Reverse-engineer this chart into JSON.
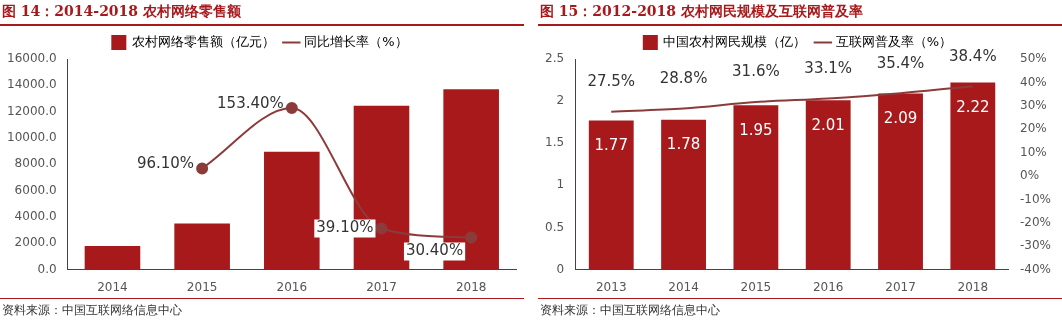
{
  "chart_data": [
    {
      "type": "bar",
      "title": "图 14：2014-2018 农村网络零售额",
      "categories": [
        "2014",
        "2015",
        "2016",
        "2017",
        "2018"
      ],
      "series": [
        {
          "name": "农村网络零售额（亿元）",
          "type": "bar",
          "color": "#a8191c",
          "values": [
            1800,
            3500,
            8950,
            12450,
            13700
          ]
        },
        {
          "name": "同比增长率（%）",
          "type": "line",
          "axis": "y2",
          "color": "#8c3b3b",
          "marker": "circle",
          "values": [
            null,
            96.1,
            153.4,
            39.1,
            30.4
          ],
          "value_labels": [
            null,
            "96.10%",
            "153.40%",
            "39.10%",
            "30.40%"
          ]
        }
      ],
      "ylim": [
        0,
        16000
      ],
      "yticks": [
        {
          "value": 0,
          "label": "0.0"
        },
        {
          "value": 2000,
          "label": "2000.0"
        },
        {
          "value": 4000,
          "label": "4000.0"
        },
        {
          "value": 6000,
          "label": "6000.0"
        },
        {
          "value": 8000,
          "label": "8000.0"
        },
        {
          "value": 10000,
          "label": "10000.0"
        },
        {
          "value": 12000,
          "label": "12000.0"
        },
        {
          "value": 14000,
          "label": "14000.0"
        },
        {
          "value": 16000,
          "label": "16000.0"
        }
      ],
      "grid": false,
      "legend": "top",
      "annotations": [
        "资料来源：中国互联网络信息中心"
      ]
    },
    {
      "type": "bar",
      "title": "图 15：2012-2018 农村网民规模及互联网普及率",
      "categories": [
        "2013",
        "2014",
        "2015",
        "2016",
        "2017",
        "2018"
      ],
      "series": [
        {
          "name": "中国农村网民规模（亿）",
          "type": "bar",
          "color": "#a8191c",
          "values": [
            1.77,
            1.78,
            1.95,
            2.01,
            2.09,
            2.22
          ],
          "value_labels": [
            "1.77",
            "1.78",
            "1.95",
            "2.01",
            "2.09",
            "2.22"
          ]
        },
        {
          "name": "互联网普及率（%）",
          "type": "line",
          "axis": "y2",
          "color": "#8c3b3b",
          "marker": "none",
          "values": [
            27.5,
            28.8,
            31.6,
            33.1,
            35.4,
            38.4
          ],
          "value_labels": [
            "27.5%",
            "28.8%",
            "31.6%",
            "33.1%",
            "35.4%",
            "38.4%"
          ]
        }
      ],
      "ylim": [
        0,
        2.5
      ],
      "yticks": [
        0,
        0.5,
        1,
        1.5,
        2,
        2.5
      ],
      "y2lim": [
        -40,
        50
      ],
      "y2ticks": [
        {
          "value": -40,
          "label": "-40%"
        },
        {
          "value": -30,
          "label": "-30%"
        },
        {
          "value": -20,
          "label": "-20%"
        },
        {
          "value": -10,
          "label": "-10%"
        },
        {
          "value": 0,
          "label": "0%"
        },
        {
          "value": 10,
          "label": "10%"
        },
        {
          "value": 20,
          "label": "20%"
        },
        {
          "value": 30,
          "label": "30%"
        },
        {
          "value": 40,
          "label": "40%"
        },
        {
          "value": 50,
          "label": "50%"
        }
      ],
      "grid": false,
      "legend": "top",
      "annotations": [
        "资料来源：中国互联网络信息中心"
      ]
    }
  ]
}
